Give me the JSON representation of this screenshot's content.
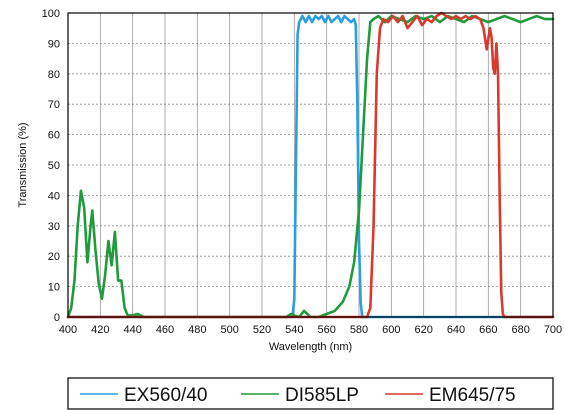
{
  "chart_data": {
    "type": "line",
    "title": "",
    "xlabel": "Wavelength (nm)",
    "ylabel": "Transmission (%)",
    "xlim": [
      400,
      700
    ],
    "ylim": [
      0,
      100
    ],
    "x_ticks": [
      400,
      420,
      440,
      460,
      480,
      500,
      520,
      540,
      560,
      580,
      600,
      620,
      640,
      660,
      680,
      700
    ],
    "y_ticks": [
      0,
      10,
      20,
      30,
      40,
      50,
      60,
      70,
      80,
      90,
      100
    ],
    "grid": true,
    "legend_position": "bottom",
    "series": [
      {
        "name": "EX560/40",
        "color": "#2a9fe0",
        "points": [
          [
            400,
            0
          ],
          [
            538,
            0
          ],
          [
            539,
            1
          ],
          [
            540,
            6
          ],
          [
            541,
            50
          ],
          [
            542,
            93
          ],
          [
            543,
            97
          ],
          [
            545,
            99
          ],
          [
            547,
            97
          ],
          [
            549,
            99
          ],
          [
            551,
            97
          ],
          [
            553,
            99
          ],
          [
            555,
            98
          ],
          [
            557,
            99
          ],
          [
            559,
            97
          ],
          [
            561,
            99
          ],
          [
            563,
            97
          ],
          [
            565,
            98
          ],
          [
            567,
            99
          ],
          [
            569,
            97
          ],
          [
            571,
            99
          ],
          [
            573,
            98
          ],
          [
            575,
            97
          ],
          [
            577,
            98
          ],
          [
            578,
            96
          ],
          [
            579,
            70
          ],
          [
            580,
            25
          ],
          [
            581,
            5
          ],
          [
            582,
            0
          ],
          [
            700,
            0
          ]
        ]
      },
      {
        "name": "DI585LP",
        "color": "#1f9a3c",
        "points": [
          [
            400,
            0
          ],
          [
            402,
            3
          ],
          [
            404,
            12
          ],
          [
            406,
            30
          ],
          [
            408,
            41.5
          ],
          [
            410,
            36
          ],
          [
            412,
            18
          ],
          [
            414,
            30
          ],
          [
            415,
            35
          ],
          [
            417,
            22
          ],
          [
            419,
            11
          ],
          [
            421,
            6
          ],
          [
            423,
            14
          ],
          [
            425,
            25
          ],
          [
            427,
            17
          ],
          [
            429,
            28
          ],
          [
            431,
            12
          ],
          [
            433,
            12
          ],
          [
            435,
            3
          ],
          [
            437,
            0.5
          ],
          [
            440,
            0.5
          ],
          [
            443,
            1
          ],
          [
            447,
            0
          ],
          [
            500,
            0
          ],
          [
            535,
            0
          ],
          [
            538,
            1
          ],
          [
            540,
            0.5
          ],
          [
            543,
            0
          ],
          [
            546,
            2
          ],
          [
            550,
            0
          ],
          [
            555,
            0
          ],
          [
            560,
            1
          ],
          [
            565,
            2
          ],
          [
            570,
            5
          ],
          [
            574,
            10
          ],
          [
            577,
            18
          ],
          [
            580,
            35
          ],
          [
            583,
            65
          ],
          [
            585,
            85
          ],
          [
            587,
            97
          ],
          [
            589,
            98
          ],
          [
            592,
            99
          ],
          [
            596,
            97
          ],
          [
            600,
            99
          ],
          [
            605,
            98
          ],
          [
            610,
            97
          ],
          [
            615,
            99
          ],
          [
            620,
            98
          ],
          [
            625,
            99
          ],
          [
            630,
            97
          ],
          [
            635,
            99
          ],
          [
            640,
            98
          ],
          [
            645,
            97
          ],
          [
            650,
            99
          ],
          [
            655,
            98
          ],
          [
            660,
            97
          ],
          [
            665,
            98
          ],
          [
            670,
            99
          ],
          [
            675,
            98
          ],
          [
            680,
            97
          ],
          [
            685,
            98
          ],
          [
            690,
            99
          ],
          [
            695,
            98
          ],
          [
            700,
            98
          ]
        ]
      },
      {
        "name": "EM645/75",
        "color": "#d93a2e",
        "points": [
          [
            400,
            0
          ],
          [
            585,
            0
          ],
          [
            587,
            3
          ],
          [
            589,
            30
          ],
          [
            591,
            80
          ],
          [
            593,
            95
          ],
          [
            595,
            98
          ],
          [
            598,
            97
          ],
          [
            601,
            99
          ],
          [
            604,
            97
          ],
          [
            607,
            99
          ],
          [
            610,
            95
          ],
          [
            613,
            97
          ],
          [
            616,
            99
          ],
          [
            619,
            96
          ],
          [
            622,
            98
          ],
          [
            625,
            97
          ],
          [
            628,
            99
          ],
          [
            631,
            100
          ],
          [
            634,
            99
          ],
          [
            637,
            98
          ],
          [
            640,
            99
          ],
          [
            643,
            98
          ],
          [
            646,
            99
          ],
          [
            649,
            98
          ],
          [
            652,
            99
          ],
          [
            655,
            98
          ],
          [
            657,
            95
          ],
          [
            659,
            88
          ],
          [
            661,
            95
          ],
          [
            662,
            92
          ],
          [
            663,
            82
          ],
          [
            664,
            80
          ],
          [
            665,
            90
          ],
          [
            666,
            80
          ],
          [
            667,
            40
          ],
          [
            668,
            8
          ],
          [
            669,
            1
          ],
          [
            670,
            0
          ],
          [
            700,
            0
          ]
        ]
      }
    ]
  }
}
